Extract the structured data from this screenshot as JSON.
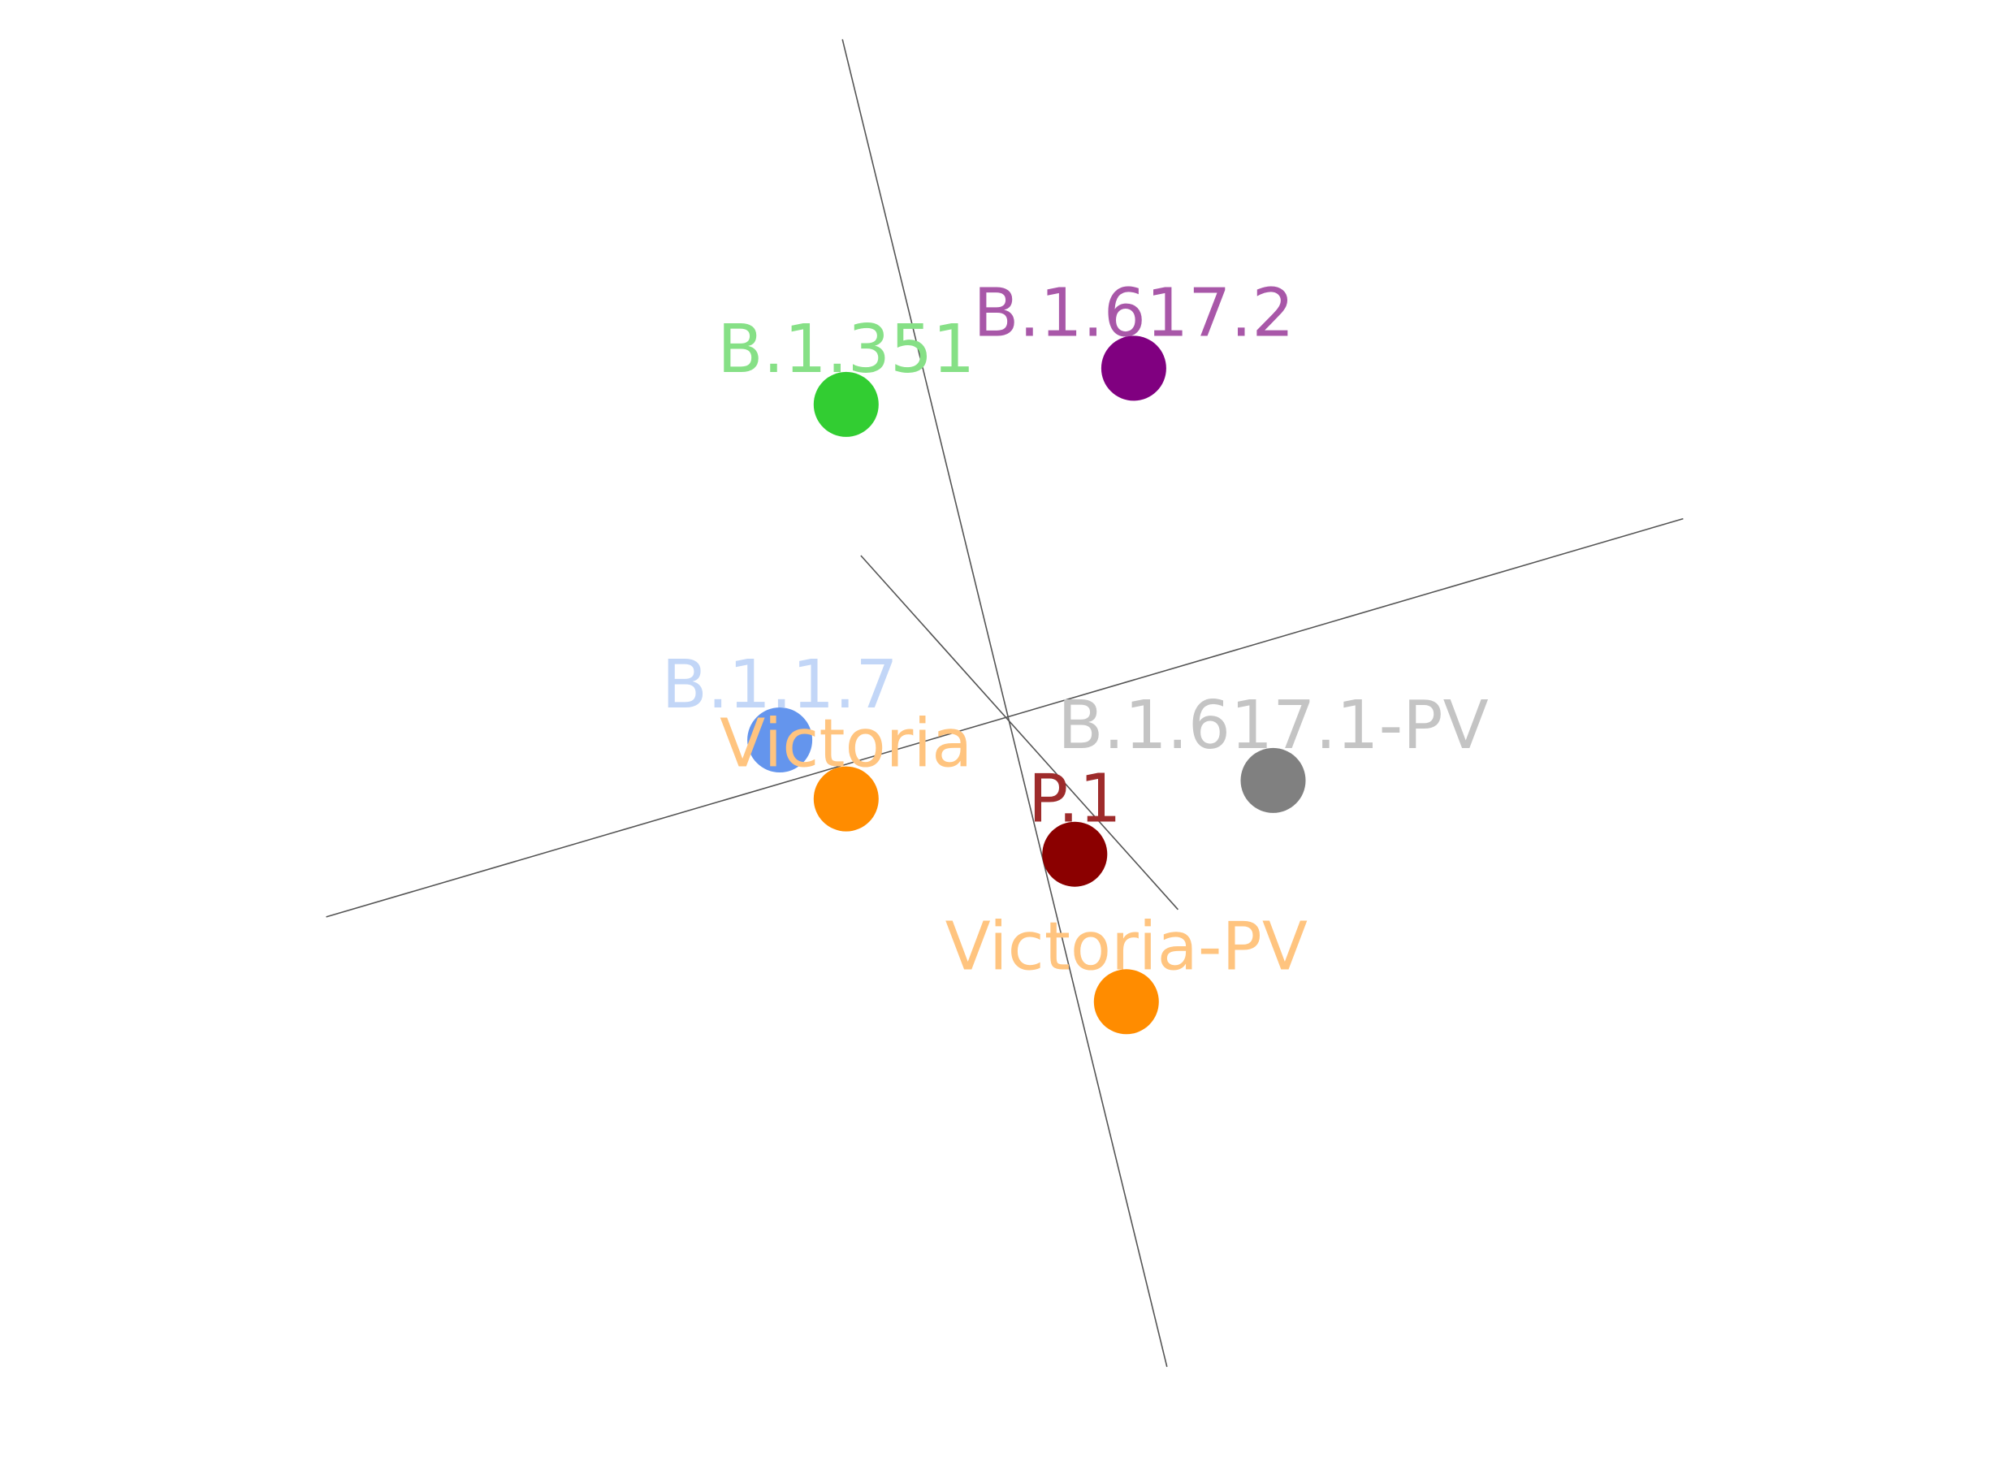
{
  "chart_data": {
    "type": "scatter",
    "title": "",
    "xlabel": "",
    "ylabel": "",
    "legend": "none",
    "grid": false,
    "points": [
      {
        "name": "B.1.617.2",
        "x": 1.75,
        "y": -5.04,
        "color": "#800080",
        "label_color": "#a857a8"
      },
      {
        "name": "B.1.351",
        "x": -2.15,
        "y": -4.55,
        "color": "#32cd32",
        "label_color": "#86e086"
      },
      {
        "name": "B.1.1.7",
        "x": -3.05,
        "y": 0.0,
        "color": "#6495ed",
        "label_color": "#c2d6f7"
      },
      {
        "name": "Victoria",
        "x": -2.15,
        "y": 0.8,
        "color": "#ff8c00",
        "label_color": "#ffc47f"
      },
      {
        "name": "B.1.617.1-PV",
        "x": 3.64,
        "y": 0.55,
        "color": "#808080",
        "label_color": "#c4c4c4"
      },
      {
        "name": "P.1",
        "x": 0.95,
        "y": 1.55,
        "color": "#8b0000",
        "label_color": "#9e2b2b"
      },
      {
        "name": "Victoria-PV",
        "x": 1.65,
        "y": 3.55,
        "color": "#ff8c00",
        "label_color": "#ffc47f"
      }
    ],
    "axis_lines": [
      {
        "from": [
          -9.2,
          2.4
        ],
        "to": [
          9.2,
          -3.0
        ]
      },
      {
        "from": [
          -2.2,
          -9.5
        ],
        "to": [
          2.2,
          8.5
        ]
      },
      {
        "from": [
          -1.95,
          -2.5
        ],
        "to": [
          2.35,
          2.3
        ]
      }
    ],
    "xlim": [
      -9.2,
      9.2
    ],
    "ylim": [
      -9.5,
      8.5
    ]
  }
}
